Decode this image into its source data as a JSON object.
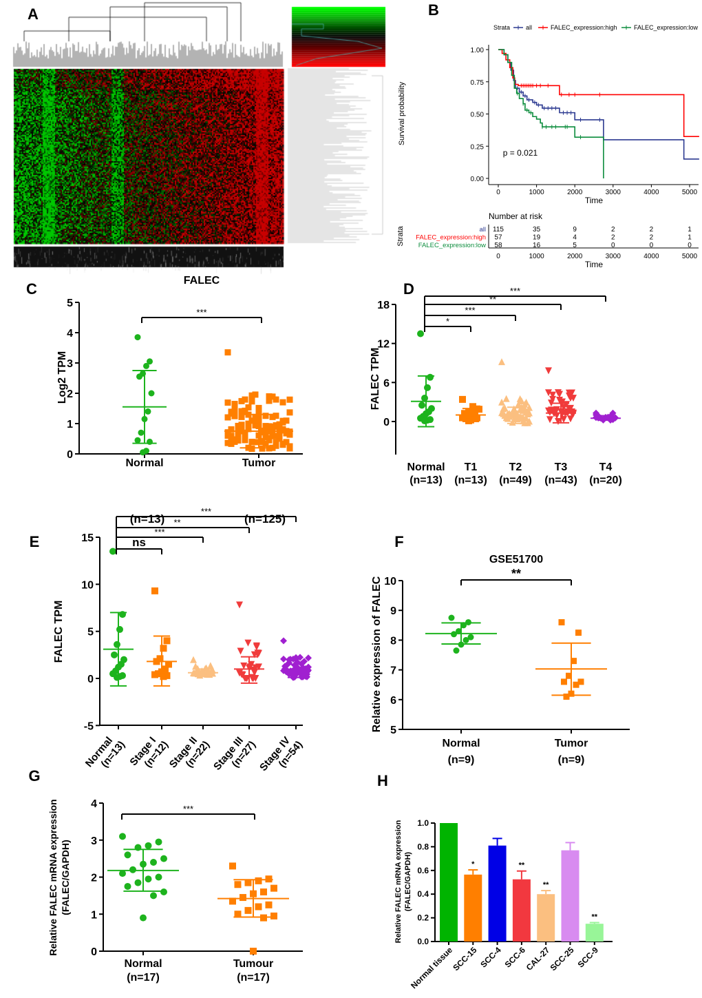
{
  "panel_labels": [
    "A",
    "B",
    "C",
    "D",
    "E",
    "F",
    "G",
    "H"
  ],
  "chart_data": [
    {
      "type": "heatmap",
      "xlabel": "FALEC",
      "colors": {
        "low": "#00FF00",
        "mid": "#000000",
        "high": "#FF0000"
      }
    },
    {
      "type": "line",
      "legend_title": "Strata",
      "legend_position": "top",
      "xlabel": "Time",
      "ylabel": "Survival probability",
      "xlim": [
        0,
        5250
      ],
      "ylim": [
        0,
        1
      ],
      "xticks": [
        "0",
        "1000",
        "2000",
        "3000",
        "4000",
        "5000"
      ],
      "yticks": [
        "0.00",
        "0.25",
        "0.50",
        "0.75",
        "1.00"
      ],
      "pvalue_label": "p = 0.021",
      "series": [
        {
          "name": "all",
          "color": "#2B3990",
          "steps": [
            [
              0,
              1
            ],
            [
              150,
              0.96
            ],
            [
              250,
              0.9
            ],
            [
              330,
              0.84
            ],
            [
              400,
              0.76
            ],
            [
              450,
              0.7
            ],
            [
              550,
              0.67
            ],
            [
              650,
              0.64
            ],
            [
              750,
              0.61
            ],
            [
              900,
              0.59
            ],
            [
              1000,
              0.57
            ],
            [
              1150,
              0.545
            ],
            [
              1600,
              0.51
            ],
            [
              2000,
              0.455
            ],
            [
              2750,
              0.3
            ],
            [
              4850,
              0.15
            ]
          ],
          "end": 5250,
          "censor": [
            500,
            600,
            700,
            800,
            950,
            1050,
            1200,
            1300,
            1400,
            1500,
            1700,
            1800,
            1900,
            2150,
            2650,
            2750
          ]
        },
        {
          "name": "FALEC_expression:high",
          "color": "#FF0000",
          "steps": [
            [
              0,
              1
            ],
            [
              100,
              0.97
            ],
            [
              200,
              0.92
            ],
            [
              300,
              0.86
            ],
            [
              380,
              0.78
            ],
            [
              430,
              0.73
            ],
            [
              520,
              0.72
            ],
            [
              1600,
              0.65
            ],
            [
              4850,
              0.325
            ]
          ],
          "end": 5250,
          "censor": [
            600,
            650,
            700,
            750,
            800,
            850,
            900,
            1000,
            1100,
            1300,
            1650,
            1850,
            2000,
            2650
          ]
        },
        {
          "name": "FALEC_expression:low",
          "color": "#0B8C3C",
          "steps": [
            [
              0,
              1
            ],
            [
              150,
              0.96
            ],
            [
              250,
              0.9
            ],
            [
              350,
              0.8
            ],
            [
              420,
              0.7
            ],
            [
              480,
              0.66
            ],
            [
              550,
              0.62
            ],
            [
              650,
              0.58
            ],
            [
              700,
              0.53
            ],
            [
              800,
              0.51
            ],
            [
              900,
              0.48
            ],
            [
              1000,
              0.46
            ],
            [
              1100,
              0.43
            ],
            [
              1150,
              0.4
            ],
            [
              2000,
              0.32
            ],
            [
              2750,
              0
            ]
          ],
          "end": 2750,
          "censor": [
            500,
            650,
            750,
            850,
            1150,
            1250,
            1400,
            1500,
            1750,
            1800,
            2150
          ]
        }
      ],
      "risk_table": {
        "title": "Number at risk",
        "ylabel": "Strata",
        "xlabel": "Time",
        "rows": [
          {
            "label": "all",
            "values": [
              "115",
              "35",
              "9",
              "2",
              "2",
              "1"
            ]
          },
          {
            "label": "FALEC_expression:high",
            "values": [
              "57",
              "19",
              "4",
              "2",
              "2",
              "1"
            ]
          },
          {
            "label": "FALEC_expression:low",
            "values": [
              "58",
              "16",
              "5",
              "0",
              "0",
              "0"
            ]
          }
        ]
      }
    },
    {
      "type": "scatter",
      "ylabel": "Log2 TPM",
      "ylim": [
        0,
        5
      ],
      "yticks": [
        "0",
        "1",
        "2",
        "3",
        "4",
        "5"
      ],
      "groups": [
        {
          "label": [
            "Normal"
          ],
          "color": "#1DB31D",
          "shape": "circle",
          "mean": 1.55,
          "upper": 2.75,
          "lower": 0.35,
          "values": [
            3.85,
            3.05,
            2.9,
            2.65,
            2.55,
            2.0,
            1.4,
            1.15,
            0.7,
            0.45,
            0.4,
            0.1,
            0.05
          ]
        },
        {
          "label": [
            "Tumor"
          ],
          "color": "#FF7F00",
          "shape": "square",
          "mean": 0.75,
          "upper": 1.3,
          "lower": 0.2,
          "n": 125,
          "max": 3.35,
          "min": 0
        }
      ],
      "comparisons": [
        {
          "from": 0,
          "to": 1,
          "label": "***"
        }
      ]
    },
    {
      "type": "scatter",
      "ylabel": "FALEC TPM",
      "ylim": [
        -5,
        18
      ],
      "yticks": [
        "0",
        "6",
        "12",
        "18"
      ],
      "groups": [
        {
          "label": [
            "Normal",
            "(n=13)"
          ],
          "color": "#1DB31D",
          "shape": "circle",
          "mean": 3.1,
          "upper": 7.0,
          "lower": -0.8,
          "values": [
            13.5,
            6.8,
            5.2,
            3.6,
            2.5,
            2.0,
            1.5,
            1.2,
            0.8,
            0.5,
            0.3,
            0.2,
            0.1
          ]
        },
        {
          "label": [
            "T1",
            "(n=13)"
          ],
          "color": "#FF7F00",
          "shape": "square",
          "mean": 1.0,
          "upper": 2.0,
          "lower": 0.0,
          "n": 13,
          "max": 3.4,
          "min": 0
        },
        {
          "label": [
            "T2",
            "(n=49)"
          ],
          "color": "#FBBF80",
          "shape": "triangle",
          "mean": 1.0,
          "upper": 2.2,
          "lower": -0.3,
          "n": 49,
          "max": 9.2,
          "min": -0.3
        },
        {
          "label": [
            "T3",
            "(n=43)"
          ],
          "color": "#F03B3B",
          "shape": "triangle-down",
          "mean": 1.3,
          "upper": 2.8,
          "lower": -0.2,
          "n": 43,
          "max": 7.8,
          "min": 0
        },
        {
          "label": [
            "T4",
            "(n=20)"
          ],
          "color": "#A020D0",
          "shape": "diamond",
          "mean": 0.5,
          "upper": 0.9,
          "lower": 0.2,
          "n": 20,
          "max": 1.3,
          "min": 0
        }
      ],
      "comparisons": [
        {
          "from": 0,
          "to": 1,
          "label": "*"
        },
        {
          "from": 0,
          "to": 2,
          "label": "***"
        },
        {
          "from": 0,
          "to": 3,
          "label": "**"
        },
        {
          "from": 0,
          "to": 4,
          "label": "***"
        }
      ]
    },
    {
      "type": "scatter",
      "ylabel": "FALEC TPM",
      "ylim": [
        -5,
        15
      ],
      "yticks": [
        "-5",
        "0",
        "5",
        "10",
        "15"
      ],
      "annotations": [
        "(n=13)",
        "(n=125)"
      ],
      "groups": [
        {
          "label": [
            "Normal",
            "(n=13)"
          ],
          "color": "#1DB31D",
          "shape": "circle",
          "mean": 3.1,
          "upper": 7.0,
          "lower": -0.8,
          "values": [
            13.5,
            6.8,
            5.2,
            3.6,
            2.5,
            2.0,
            1.5,
            1.2,
            0.8,
            0.5,
            0.3,
            0.2,
            0.1
          ]
        },
        {
          "label": [
            "Stage I",
            "(n=12)"
          ],
          "color": "#FF7F00",
          "shape": "square",
          "mean": 1.8,
          "upper": 4.5,
          "lower": -0.8,
          "values": [
            9.3,
            4.0,
            3.2,
            2.1,
            1.8,
            1.5,
            1.0,
            0.7,
            0.5,
            0.4,
            0.3,
            0.2
          ]
        },
        {
          "label": [
            "Stage II",
            "(n=22)"
          ],
          "color": "#FBBF80",
          "shape": "triangle",
          "mean": 0.6,
          "upper": 1.0,
          "lower": 0.2,
          "n": 22,
          "max": 2.0,
          "min": 0
        },
        {
          "label": [
            "Stage III",
            "(n=27)"
          ],
          "color": "#F03B3B",
          "shape": "triangle-down",
          "mean": 1.0,
          "upper": 2.3,
          "lower": -0.5,
          "n": 27,
          "max": 7.8,
          "min": 0
        },
        {
          "label": [
            "Stage IV",
            "(n=54)"
          ],
          "color": "#A020D0",
          "shape": "diamond",
          "mean": 0.8,
          "upper": 1.5,
          "lower": 0.1,
          "n": 54,
          "max": 4.0,
          "min": 0
        }
      ],
      "comparisons": [
        {
          "from": 0,
          "to": 1,
          "label": "ns"
        },
        {
          "from": 0,
          "to": 2,
          "label": "***"
        },
        {
          "from": 0,
          "to": 3,
          "label": "**"
        },
        {
          "from": 0,
          "to": 4,
          "label": "***"
        }
      ]
    },
    {
      "type": "scatter",
      "title": "GSE51700",
      "ylabel": "Relative expression of  FALEC",
      "ylim": [
        5,
        10
      ],
      "yticks": [
        "5",
        "6",
        "7",
        "8",
        "9",
        "10"
      ],
      "groups": [
        {
          "label": [
            "Normal",
            "(n=9)"
          ],
          "color": "#1DB31D",
          "shape": "circle",
          "mean": 8.22,
          "upper": 8.58,
          "lower": 7.87,
          "values": [
            8.75,
            8.6,
            8.5,
            8.3,
            8.2,
            8.1,
            8.0,
            7.85,
            7.65
          ]
        },
        {
          "label": [
            "Tumor",
            "(n=9)"
          ],
          "color": "#FF7F00",
          "shape": "square",
          "mean": 7.03,
          "upper": 7.9,
          "lower": 6.15,
          "values": [
            8.6,
            8.25,
            7.3,
            6.8,
            6.6,
            6.6,
            6.5,
            6.2,
            6.1
          ]
        }
      ],
      "comparisons": [
        {
          "from": 0,
          "to": 1,
          "label": "**"
        }
      ]
    },
    {
      "type": "scatter",
      "ylabel": [
        "Relative FALEC mRNA expression",
        "(FALEC/GAPDH)"
      ],
      "ylim": [
        0,
        4
      ],
      "yticks": [
        "0",
        "1",
        "2",
        "3",
        "4"
      ],
      "groups": [
        {
          "label": [
            "Normal",
            "(n=17)"
          ],
          "color": "#1DB31D",
          "shape": "circle",
          "mean": 2.18,
          "upper": 2.75,
          "lower": 1.62,
          "values": [
            3.1,
            2.95,
            2.85,
            2.8,
            2.6,
            2.5,
            2.4,
            2.35,
            2.2,
            2.1,
            2.0,
            1.95,
            1.85,
            1.75,
            1.6,
            1.5,
            0.9
          ]
        },
        {
          "label": [
            "Tumour",
            "(n=17)"
          ],
          "color": "#FF7F00",
          "shape": "square",
          "mean": 1.42,
          "upper": 1.93,
          "lower": 0.92,
          "values": [
            2.3,
            1.95,
            1.9,
            1.85,
            1.8,
            1.7,
            1.6,
            1.55,
            1.45,
            1.35,
            1.25,
            1.2,
            1.1,
            1.0,
            0.95,
            0.9,
            0.0
          ]
        }
      ],
      "comparisons": [
        {
          "from": 0,
          "to": 1,
          "label": "***"
        }
      ]
    },
    {
      "type": "bar",
      "ylabel": [
        "Relative FALEC mRNA expression",
        "(FALEC/GAPDH)"
      ],
      "ylim": [
        0,
        1.0
      ],
      "yticks": [
        "0.0",
        "0.2",
        "0.4",
        "0.6",
        "0.8",
        "1.0"
      ],
      "categories": [
        "Normal tissue",
        "SCC-15",
        "SCC-4",
        "SCC-6",
        "CAL-27",
        "SCC-25",
        "SCC-9"
      ],
      "values": [
        1.0,
        0.565,
        0.81,
        0.525,
        0.4,
        0.77,
        0.15
      ],
      "error_upper": [
        1.0,
        0.605,
        0.87,
        0.595,
        0.43,
        0.835,
        0.16
      ],
      "significance": [
        "",
        "*",
        "",
        "**",
        "**",
        "",
        "**"
      ],
      "colors": [
        "#00B400",
        "#FF7F00",
        "#0000E6",
        "#F2383F",
        "#FBBF80",
        "#D88BF0",
        "#98F598"
      ]
    }
  ]
}
